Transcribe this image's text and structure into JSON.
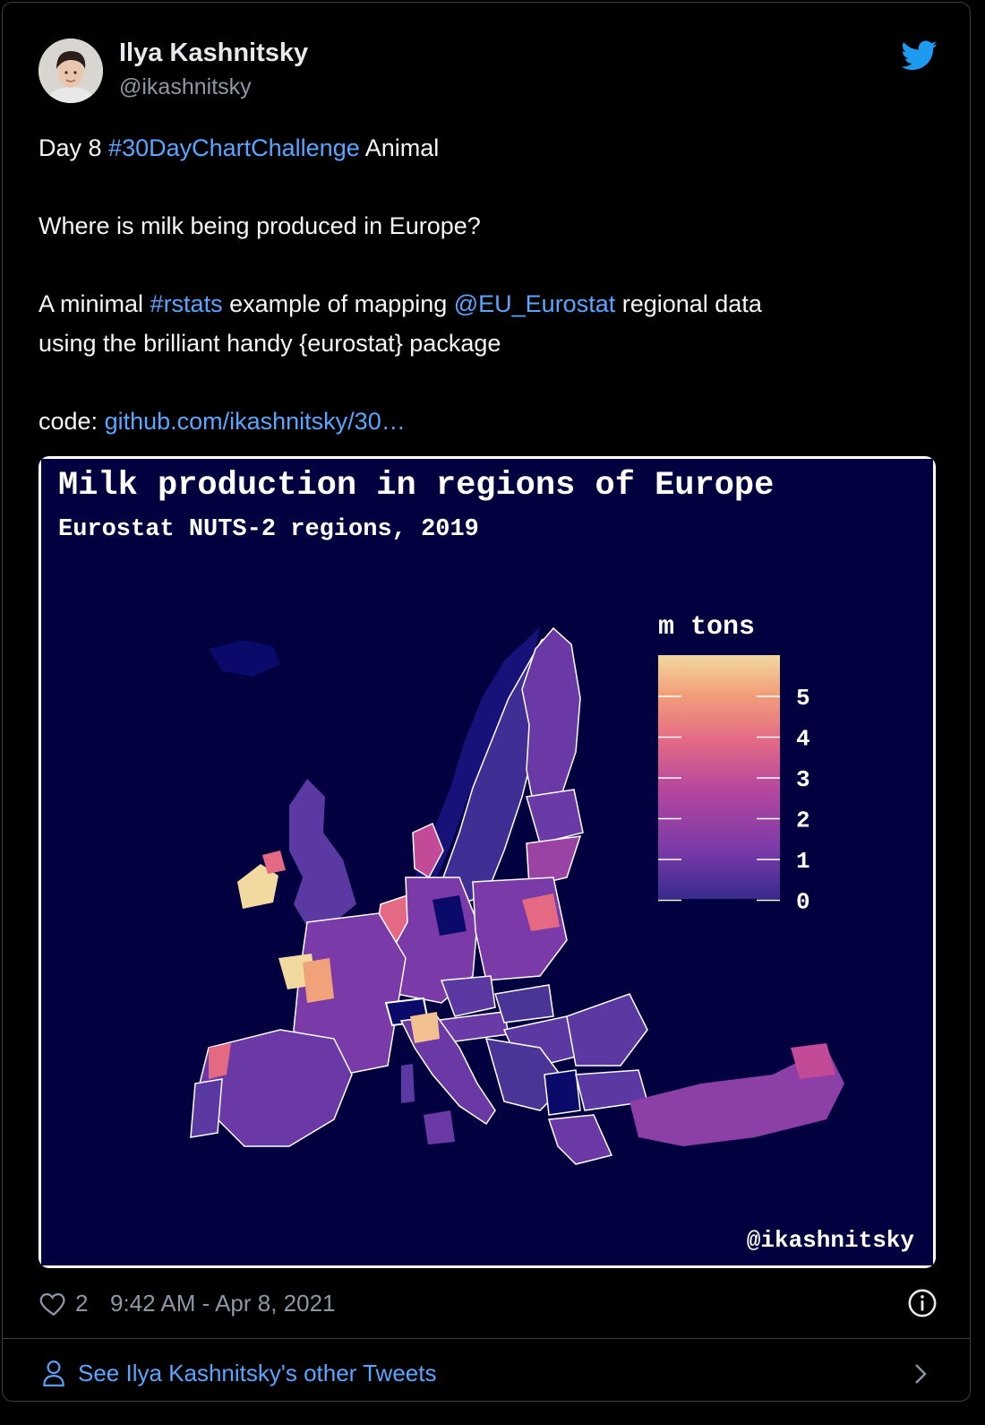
{
  "tweet": {
    "author_name": "Ilya Kashnitsky",
    "author_handle": "@ikashnitsky",
    "line1_pre": "Day 8 ",
    "line1_tag": "#30DayChartChallenge",
    "line1_post": " Animal",
    "line2": "Where is milk being produced in Europe?",
    "line3_pre": "A minimal ",
    "line3_tag": "#rstats",
    "line3_mid": " example of mapping ",
    "line3_mention": "@EU_Eurostat",
    "line3_post": " regional data",
    "line4": "using the brilliant handy {eurostat} package",
    "line5_pre": "code: ",
    "line5_link": "github.com/ikashnitsky/30…",
    "likes": "2",
    "timestamp": "9:42 AM - Apr 8, 2021",
    "see_more": "See Ilya Kashnitsky's other Tweets"
  },
  "image": {
    "title": "Milk production in regions of Europe",
    "subtitle": "Eurostat NUTS-2 regions, 2019",
    "credit": "@ikashnitsky",
    "legend_title": "m tons",
    "legend_ticks": [
      "5",
      "4",
      "3",
      "2",
      "1",
      "0"
    ],
    "bg_color": "#02003e",
    "scale_colors": [
      "#3a2a8c",
      "#7a3aa8",
      "#b6479e",
      "#e46a84",
      "#f2a27a",
      "#f1d9a0"
    ]
  },
  "colors": {
    "link": "#58a6ff",
    "muted": "#8b98a5",
    "twitter_blue": "#1d9bf0"
  }
}
